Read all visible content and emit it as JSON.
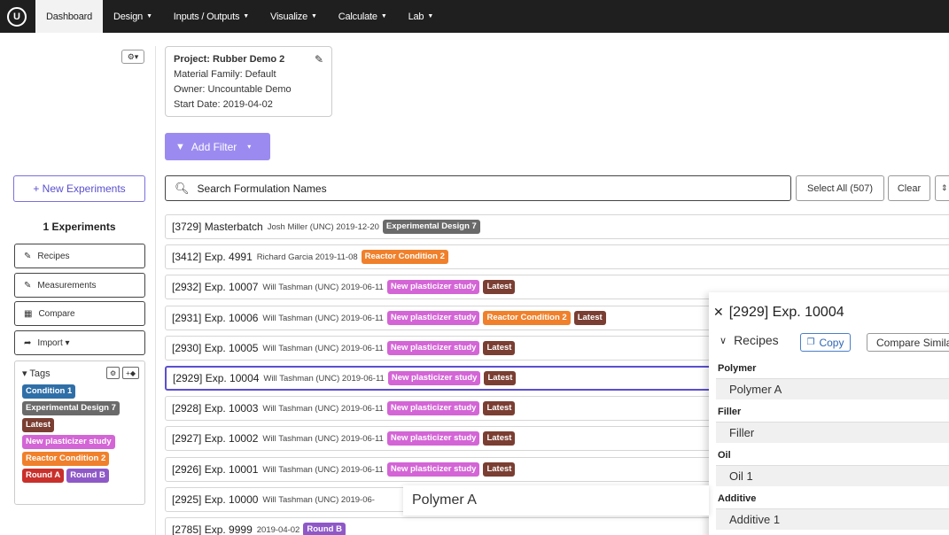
{
  "nav": {
    "logo": "U",
    "items": [
      {
        "label": "Dashboard",
        "active": true,
        "caret": false
      },
      {
        "label": "Design",
        "caret": true
      },
      {
        "label": "Inputs / Outputs",
        "caret": true
      },
      {
        "label": "Visualize",
        "caret": true
      },
      {
        "label": "Calculate",
        "caret": true
      },
      {
        "label": "Lab",
        "caret": true
      }
    ]
  },
  "sidebar": {
    "gear_label": "⚙▾",
    "new_experiments": "+ New Experiments",
    "experiments_count": "1 Experiments",
    "buttons": {
      "recipes": "Recipes",
      "measurements": "Measurements",
      "compare": "Compare",
      "import": "Import ▾"
    },
    "tags_title": "▾ Tags",
    "tags": [
      {
        "label": "Condition 1",
        "color": "#2f6fa8"
      },
      {
        "label": "Experimental Design 7",
        "color": "#6a6a6a"
      },
      {
        "label": "Latest",
        "color": "#7a3e32"
      },
      {
        "label": "New plasticizer study",
        "color": "#d465d6"
      },
      {
        "label": "Reactor Condition 2",
        "color": "#f0802b"
      },
      {
        "label": "Round A",
        "color": "#c9302c"
      },
      {
        "label": "Round B",
        "color": "#8e59c7"
      }
    ]
  },
  "project": {
    "title": "Project: Rubber Demo 2",
    "family": "Material Family: Default",
    "owner": "Owner: Uncountable Demo",
    "start": "Start Date: 2019-04-02"
  },
  "filter": {
    "add_label": "Add Filter"
  },
  "search": {
    "placeholder": "Search Formulation Names",
    "select_all": "Select All (507)",
    "clear": "Clear",
    "extra": "⇕"
  },
  "rows": [
    {
      "name": "[3729] Masterbatch",
      "meta": "Josh Miller (UNC) 2019-12-20",
      "tags": [
        {
          "label": "Experimental Design 7",
          "color": "#6a6a6a"
        }
      ]
    },
    {
      "name": "[3412] Exp. 4991",
      "meta": "Richard Garcia 2019-11-08",
      "tags": [
        {
          "label": "Reactor Condition 2",
          "color": "#f0802b"
        }
      ]
    },
    {
      "name": "[2932] Exp. 10007",
      "meta": "Will Tashman (UNC) 2019-06-11",
      "tags": [
        {
          "label": "New plasticizer study",
          "color": "#d465d6"
        },
        {
          "label": "Latest",
          "color": "#7a3e32"
        }
      ]
    },
    {
      "name": "[2931] Exp. 10006",
      "meta": "Will Tashman (UNC) 2019-06-11",
      "tags": [
        {
          "label": "New plasticizer study",
          "color": "#d465d6"
        },
        {
          "label": "Reactor Condition 2",
          "color": "#f0802b"
        },
        {
          "label": "Latest",
          "color": "#7a3e32"
        }
      ]
    },
    {
      "name": "[2930] Exp. 10005",
      "meta": "Will Tashman (UNC) 2019-06-11",
      "tags": [
        {
          "label": "New plasticizer study",
          "color": "#d465d6"
        },
        {
          "label": "Latest",
          "color": "#7a3e32"
        }
      ]
    },
    {
      "name": "[2929] Exp. 10004",
      "meta": "Will Tashman (UNC) 2019-06-11",
      "selected": true,
      "tags": [
        {
          "label": "New plasticizer study",
          "color": "#d465d6"
        },
        {
          "label": "Latest",
          "color": "#7a3e32"
        }
      ]
    },
    {
      "name": "[2928] Exp. 10003",
      "meta": "Will Tashman (UNC) 2019-06-11",
      "tags": [
        {
          "label": "New plasticizer study",
          "color": "#d465d6"
        },
        {
          "label": "Latest",
          "color": "#7a3e32"
        }
      ]
    },
    {
      "name": "[2927] Exp. 10002",
      "meta": "Will Tashman (UNC) 2019-06-11",
      "tags": [
        {
          "label": "New plasticizer study",
          "color": "#d465d6"
        },
        {
          "label": "Latest",
          "color": "#7a3e32"
        }
      ]
    },
    {
      "name": "[2926] Exp. 10001",
      "meta": "Will Tashman (UNC) 2019-06-11",
      "tags": [
        {
          "label": "New plasticizer study",
          "color": "#d465d6"
        },
        {
          "label": "Latest",
          "color": "#7a3e32"
        }
      ]
    },
    {
      "name": "[2925] Exp. 10000",
      "meta": "Will Tashman (UNC) 2019-06-",
      "tags": []
    },
    {
      "name": "[2785] Exp. 9999",
      "meta": "2019-04-02",
      "tags": [
        {
          "label": "Round B",
          "color": "#8e59c7"
        }
      ]
    }
  ],
  "panel": {
    "title": "[2929] Exp. 10004",
    "recipes_label": "Recipes",
    "copy_label": "Copy",
    "compare_label": "Compare Simila",
    "categories": [
      {
        "head": "Polymer",
        "item": "Polymer A"
      },
      {
        "head": "Filler",
        "item": "Filler"
      },
      {
        "head": "Oil",
        "item": "Oil 1"
      },
      {
        "head": "Additive",
        "item": "Additive 1"
      }
    ]
  },
  "popup": {
    "text": "Polymer A"
  }
}
